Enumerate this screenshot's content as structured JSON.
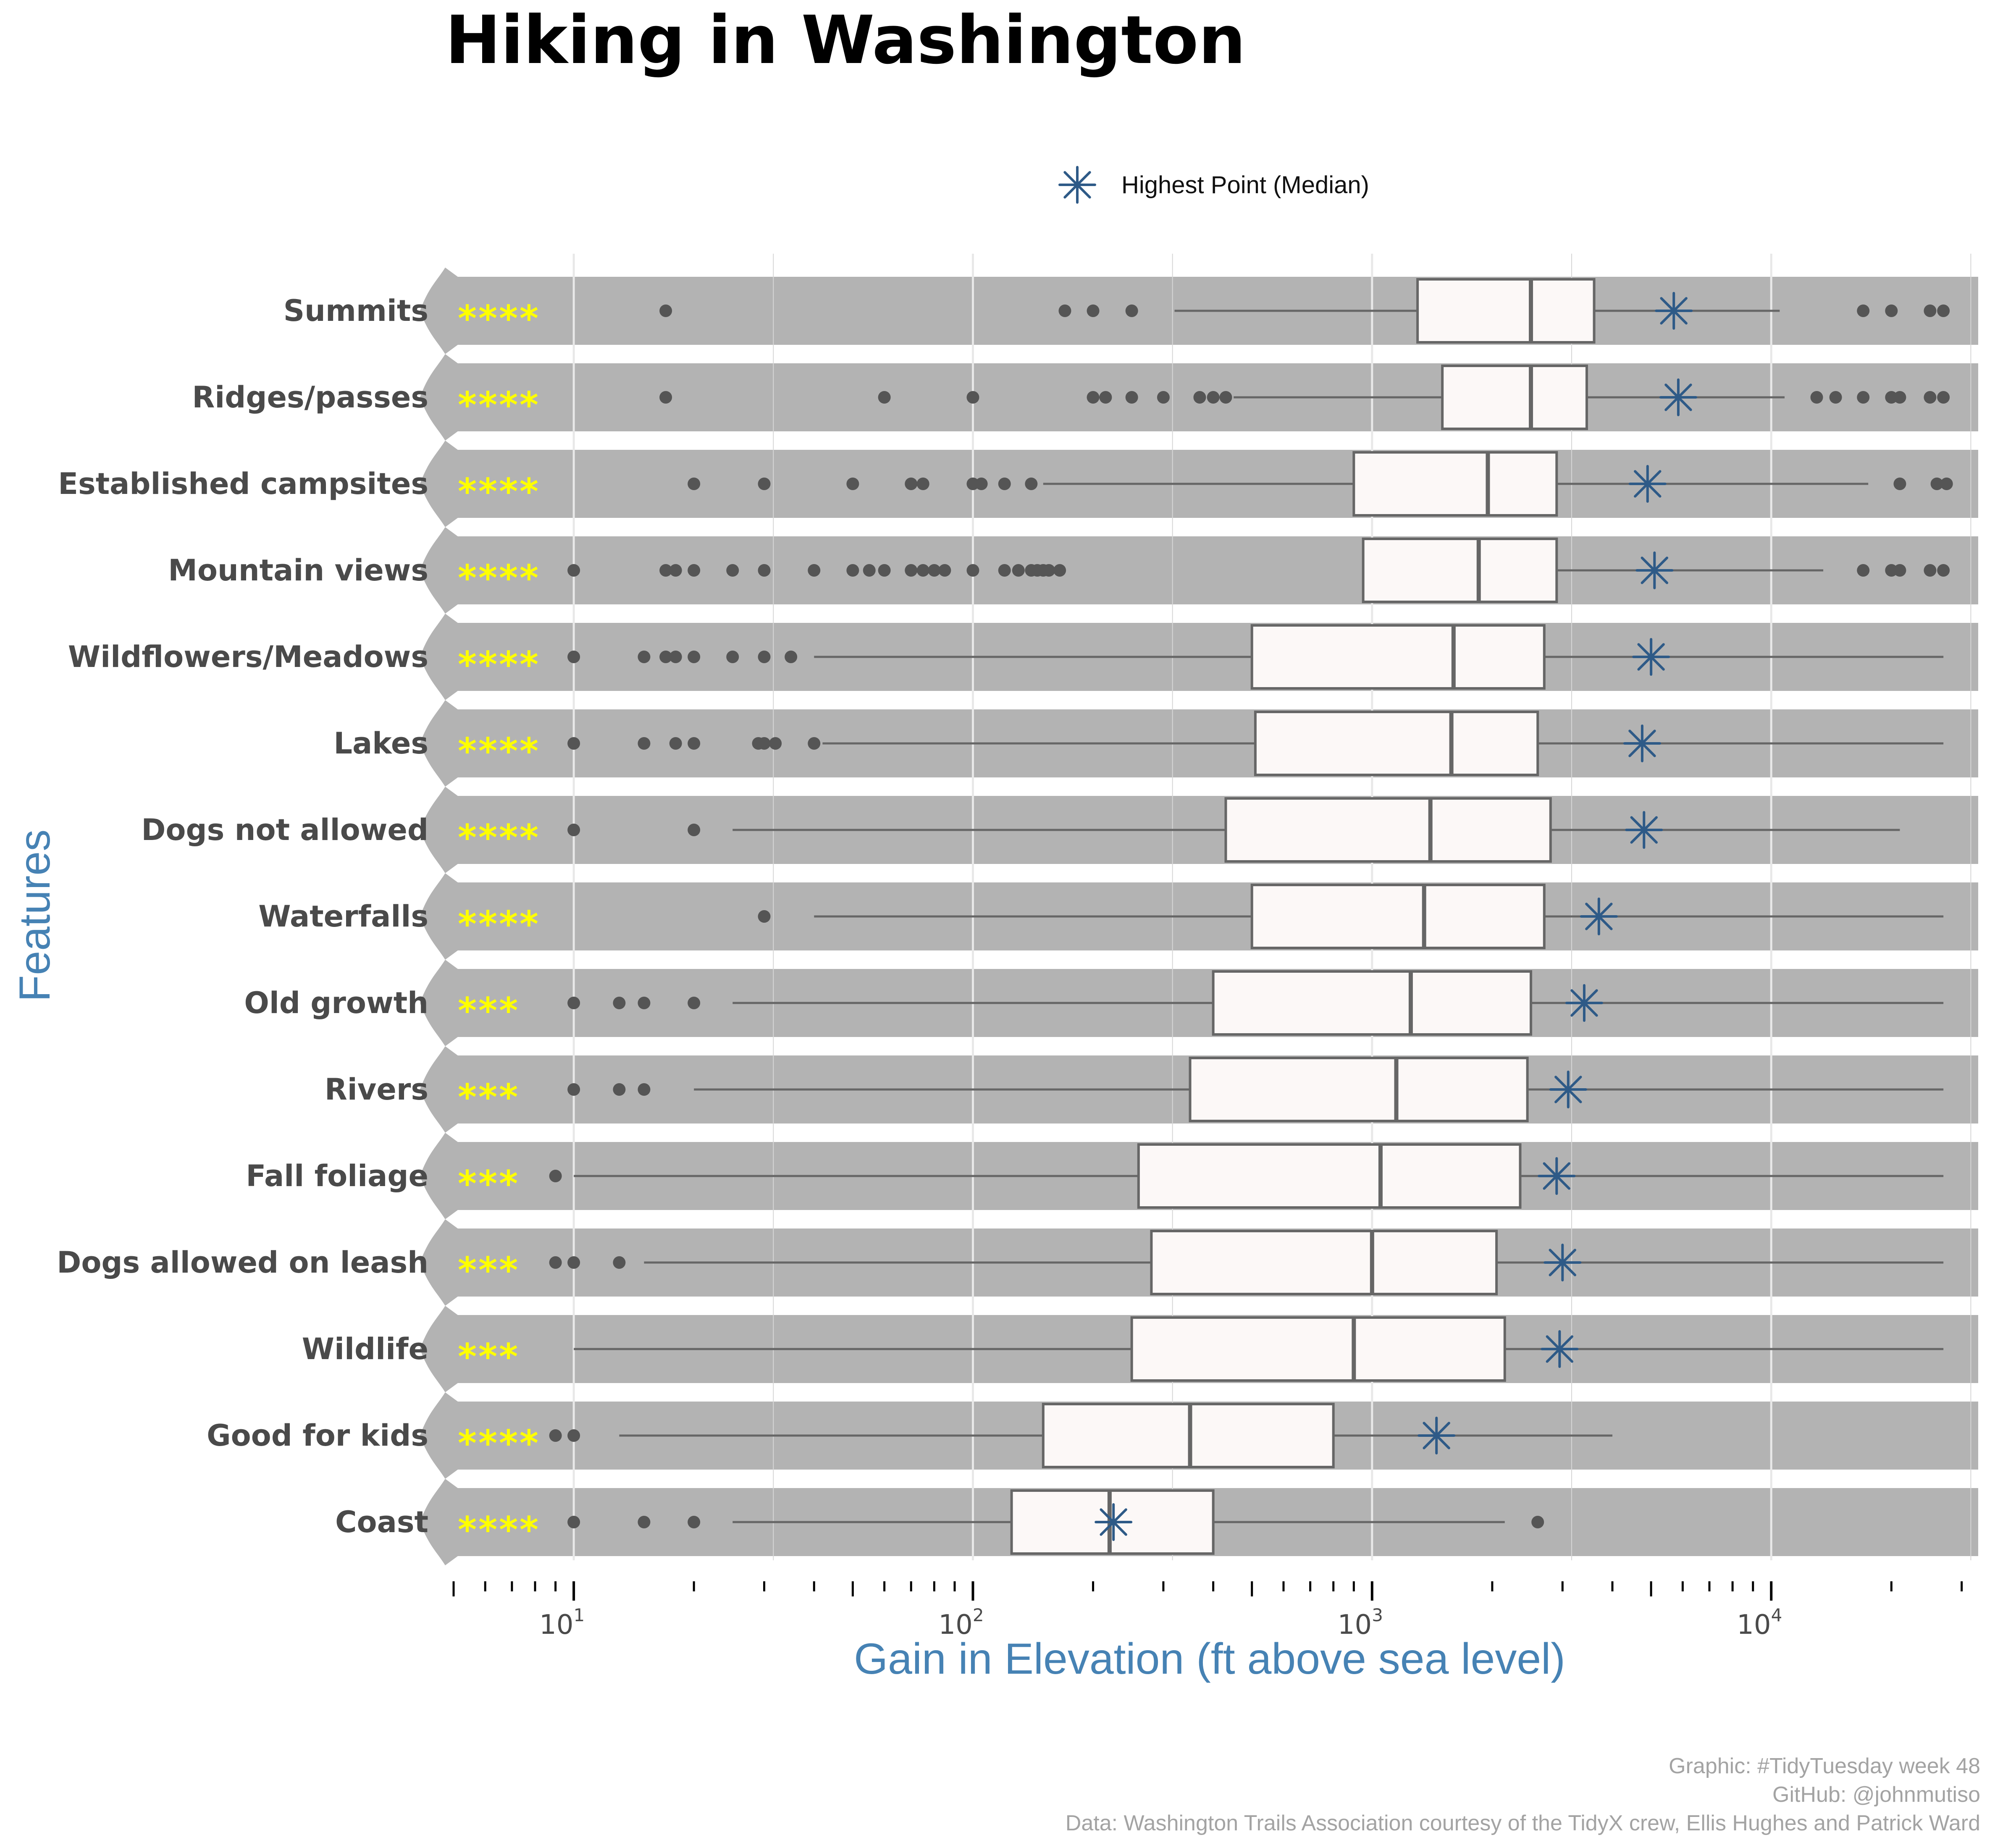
{
  "chart_data": {
    "type": "boxplot",
    "title": "Hiking in Washington",
    "xlabel": "Gain in Elevation (ft above sea level)",
    "ylabel": "Features",
    "x_scale": "log10",
    "xlim": [
      5,
      33000
    ],
    "x_major_ticks": [
      10,
      100,
      1000,
      10000
    ],
    "x_tick_labels": [
      {
        "base": "10",
        "exp": "1"
      },
      {
        "base": "10",
        "exp": "2"
      },
      {
        "base": "10",
        "exp": "3"
      },
      {
        "base": "10",
        "exp": "4"
      }
    ],
    "legend": {
      "label": "Highest Point (Median)",
      "marker": "asterisk",
      "position": "top"
    },
    "colors": {
      "band": "#b3b3b3",
      "box_fill": "#fcf8f7",
      "box_stroke": "#666666",
      "highest_point": "#2e5a87",
      "stars": "#ffff00",
      "axis_title": "#4682b4",
      "grid": "#e8e8e8"
    },
    "series": [
      {
        "feature": "Summits",
        "stars": "****",
        "whisker_low": 320,
        "q1": 1300,
        "median": 2500,
        "q3": 3600,
        "whisker_high": 10500,
        "outliers": [
          17,
          170,
          200,
          250,
          17000,
          20000,
          25000,
          27000
        ],
        "highest_point_median": 5700
      },
      {
        "feature": "Ridges/passes",
        "stars": "****",
        "whisker_low": 450,
        "q1": 1500,
        "median": 2500,
        "q3": 3450,
        "whisker_high": 10800,
        "outliers": [
          17,
          60,
          100,
          200,
          215,
          250,
          300,
          370,
          400,
          430,
          13000,
          14500,
          17000,
          20000,
          21000,
          25000,
          27000
        ],
        "highest_point_median": 5850
      },
      {
        "feature": "Established campsites",
        "stars": "****",
        "whisker_low": 150,
        "q1": 900,
        "median": 1950,
        "q3": 2900,
        "whisker_high": 17500,
        "outliers": [
          20,
          30,
          50,
          70,
          75,
          100,
          105,
          120,
          140,
          21000,
          26000,
          27500
        ],
        "highest_point_median": 4900
      },
      {
        "feature": "Mountain views",
        "stars": "****",
        "whisker_low": 950,
        "q1": 950,
        "median": 1850,
        "q3": 2900,
        "whisker_high": 13500,
        "outliers": [
          10,
          17,
          18,
          20,
          25,
          30,
          40,
          50,
          55,
          60,
          70,
          75,
          80,
          85,
          100,
          120,
          130,
          140,
          145,
          150,
          155,
          165,
          17000,
          20000,
          21000,
          25000,
          27000
        ],
        "highest_point_median": 5100
      },
      {
        "feature": "Wildflowers/Meadows",
        "stars": "****",
        "whisker_low": 40,
        "q1": 500,
        "median": 1600,
        "q3": 2700,
        "whisker_high": 27000,
        "outliers": [
          10,
          15,
          17,
          18,
          20,
          25,
          30,
          35
        ],
        "highest_point_median": 5000
      },
      {
        "feature": "Lakes",
        "stars": "****",
        "whisker_low": 42,
        "q1": 510,
        "median": 1580,
        "q3": 2600,
        "whisker_high": 27000,
        "outliers": [
          10,
          15,
          18,
          20,
          29,
          30,
          32,
          40
        ],
        "highest_point_median": 4750
      },
      {
        "feature": "Dogs not allowed",
        "stars": "****",
        "whisker_low": 25,
        "q1": 430,
        "median": 1400,
        "q3": 2800,
        "whisker_high": 21000,
        "outliers": [
          10,
          20
        ],
        "highest_point_median": 4800
      },
      {
        "feature": "Waterfalls",
        "stars": "****",
        "whisker_low": 40,
        "q1": 500,
        "median": 1350,
        "q3": 2700,
        "whisker_high": 27000,
        "outliers": [
          30
        ],
        "highest_point_median": 3700
      },
      {
        "feature": "Old growth",
        "stars": "***",
        "whisker_low": 25,
        "q1": 400,
        "median": 1250,
        "q3": 2500,
        "whisker_high": 27000,
        "outliers": [
          10,
          13,
          15,
          20
        ],
        "highest_point_median": 3400
      },
      {
        "feature": "Rivers",
        "stars": "***",
        "whisker_low": 20,
        "q1": 350,
        "median": 1150,
        "q3": 2450,
        "whisker_high": 27000,
        "outliers": [
          10,
          13,
          15
        ],
        "highest_point_median": 3100
      },
      {
        "feature": "Fall foliage",
        "stars": "***",
        "whisker_low": 10,
        "q1": 260,
        "median": 1050,
        "q3": 2350,
        "whisker_high": 27000,
        "outliers": [
          9
        ],
        "highest_point_median": 2900
      },
      {
        "feature": "Dogs allowed on leash",
        "stars": "***",
        "whisker_low": 15,
        "q1": 280,
        "median": 1000,
        "q3": 2050,
        "whisker_high": 27000,
        "outliers": [
          9,
          10,
          13
        ],
        "highest_point_median": 3000
      },
      {
        "feature": "Wildlife",
        "stars": "***",
        "whisker_low": 10,
        "q1": 250,
        "median": 900,
        "q3": 2150,
        "whisker_high": 27000,
        "outliers": [],
        "highest_point_median": 2950
      },
      {
        "feature": "Good for kids",
        "stars": "****",
        "whisker_low": 13,
        "q1": 150,
        "median": 350,
        "q3": 800,
        "whisker_high": 4000,
        "outliers": [
          9,
          10
        ],
        "highest_point_median": 1450
      },
      {
        "feature": "Coast",
        "stars": "****",
        "whisker_low": 25,
        "q1": 125,
        "median": 220,
        "q3": 400,
        "whisker_high": 2150,
        "outliers": [
          10,
          15,
          20,
          2600
        ],
        "highest_point_median": 225
      }
    ]
  },
  "caption": {
    "line1": "Graphic: #TidyTuesday week 48",
    "line2": "GitHub: @johnmutiso",
    "line3": "Data:  Washington Trails Association courtesy of the TidyX crew, Ellis Hughes and Patrick Ward"
  }
}
